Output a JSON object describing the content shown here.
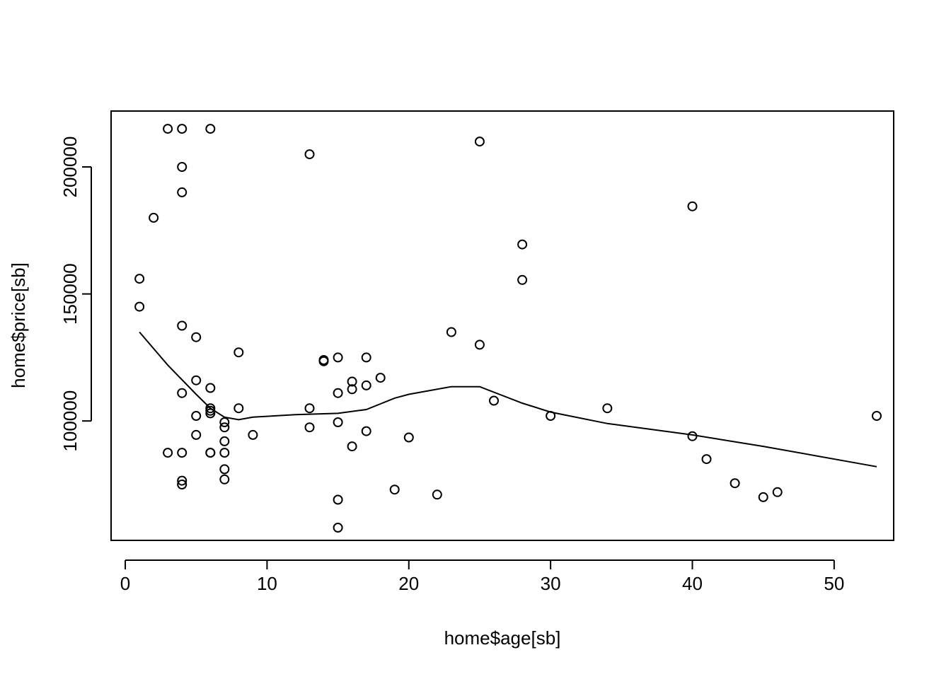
{
  "chart_data": {
    "type": "scatter",
    "title": "",
    "xlabel": "home$age[sb]",
    "ylabel": "home$price[sb]",
    "xlim": [
      -1,
      54.2
    ],
    "ylim": [
      53000,
      222000
    ],
    "x_ticks": [
      0,
      10,
      20,
      30,
      40,
      50
    ],
    "x_tick_labels": [
      "0",
      "10",
      "20",
      "30",
      "40",
      "50"
    ],
    "y_ticks": [
      100000,
      150000,
      200000
    ],
    "y_tick_labels": [
      "100000",
      "150000",
      "200000"
    ],
    "grid": false,
    "legend": "none",
    "point_color": "#000000",
    "line_color": "#000000",
    "points": [
      [
        3,
        215000
      ],
      [
        4,
        215000
      ],
      [
        6,
        215000
      ],
      [
        25,
        210000
      ],
      [
        13,
        205000
      ],
      [
        4,
        200000
      ],
      [
        4,
        190000
      ],
      [
        40,
        184500
      ],
      [
        2,
        180000
      ],
      [
        28,
        169500
      ],
      [
        1,
        156000
      ],
      [
        28,
        155500
      ],
      [
        1,
        145000
      ],
      [
        4,
        137500
      ],
      [
        23,
        135000
      ],
      [
        5,
        133000
      ],
      [
        25,
        130000
      ],
      [
        8,
        127000
      ],
      [
        15,
        125000
      ],
      [
        17,
        125000
      ],
      [
        14,
        124000
      ],
      [
        14,
        123500
      ],
      [
        18,
        117000
      ],
      [
        5,
        116000
      ],
      [
        16,
        115500
      ],
      [
        17,
        114000
      ],
      [
        6,
        113000
      ],
      [
        16,
        112500
      ],
      [
        4,
        111000
      ],
      [
        15,
        111000
      ],
      [
        26,
        108000
      ],
      [
        6,
        105000
      ],
      [
        8,
        105000
      ],
      [
        13,
        105000
      ],
      [
        34,
        105000
      ],
      [
        6,
        104000
      ],
      [
        6,
        103000
      ],
      [
        5,
        102000
      ],
      [
        30,
        102000
      ],
      [
        53,
        102000
      ],
      [
        7,
        99500
      ],
      [
        15,
        99500
      ],
      [
        7,
        97500
      ],
      [
        13,
        97500
      ],
      [
        17,
        96000
      ],
      [
        5,
        94500
      ],
      [
        9,
        94500
      ],
      [
        40,
        94000
      ],
      [
        20,
        93500
      ],
      [
        7,
        92000
      ],
      [
        16,
        90000
      ],
      [
        3,
        87500
      ],
      [
        4,
        87500
      ],
      [
        6,
        87500
      ],
      [
        6,
        87500
      ],
      [
        7,
        87500
      ],
      [
        41,
        85000
      ],
      [
        7,
        81000
      ],
      [
        4,
        76500
      ],
      [
        7,
        77000
      ],
      [
        4,
        75000
      ],
      [
        43,
        75500
      ],
      [
        19,
        73000
      ],
      [
        46,
        72000
      ],
      [
        22,
        71000
      ],
      [
        45,
        70000
      ],
      [
        15,
        69000
      ],
      [
        15,
        58000
      ]
    ],
    "smooth_line": [
      [
        1,
        135000
      ],
      [
        3,
        122000
      ],
      [
        5,
        110500
      ],
      [
        6,
        105000
      ],
      [
        7,
        101500
      ],
      [
        8,
        100500
      ],
      [
        9,
        101500
      ],
      [
        12,
        102500
      ],
      [
        15,
        103000
      ],
      [
        17,
        104500
      ],
      [
        19,
        109000
      ],
      [
        20,
        110500
      ],
      [
        23,
        113500
      ],
      [
        25,
        113500
      ],
      [
        28,
        107000
      ],
      [
        30,
        103500
      ],
      [
        34,
        99000
      ],
      [
        40,
        94500
      ],
      [
        45,
        90000
      ],
      [
        53,
        82000
      ]
    ]
  }
}
